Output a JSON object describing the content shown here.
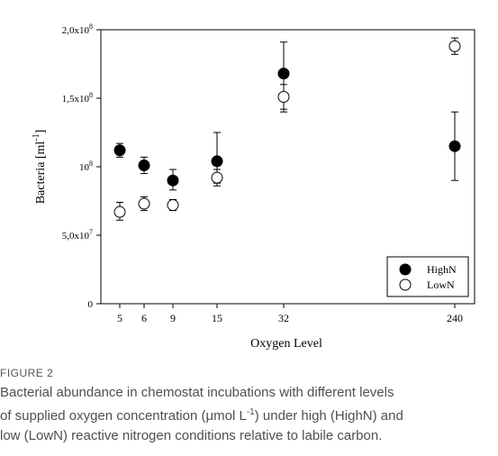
{
  "chart_data": {
    "type": "scatter",
    "x_categories": [
      "5",
      "6",
      "9",
      "15",
      "32",
      "240"
    ],
    "xlabel": "Oxygen Level",
    "ylabel": "Bacteria [ml",
    "ylabel_sup": "-1",
    "ylabel_suffix": "]",
    "ylim": [
      0,
      200000000
    ],
    "y_ticks": [
      {
        "value": 0,
        "label": "0"
      },
      {
        "value": 50000000,
        "label": "5,0x10",
        "sup": "7"
      },
      {
        "value": 100000000,
        "label": "10",
        "sup": "8"
      },
      {
        "value": 150000000,
        "label": "1,5x10",
        "sup": "8"
      },
      {
        "value": 200000000,
        "label": "2,0x10",
        "sup": "8"
      }
    ],
    "grid": false,
    "legend_position": "bottom-right",
    "series": [
      {
        "name": "HighN",
        "marker": "filled-circle",
        "x": [
          "5",
          "6",
          "9",
          "15",
          "32",
          "240"
        ],
        "y": [
          112000000,
          101000000,
          90000000,
          104000000,
          168000000,
          115000000
        ],
        "err_low": [
          107000000,
          95000000,
          83000000,
          88000000,
          142000000,
          90000000
        ],
        "err_high": [
          117000000,
          107000000,
          98000000,
          125000000,
          191000000,
          140000000
        ]
      },
      {
        "name": "LowN",
        "marker": "open-circle",
        "x": [
          "5",
          "6",
          "9",
          "15",
          "32",
          "240"
        ],
        "y": [
          67000000,
          73000000,
          72000000,
          92000000,
          151000000,
          188000000
        ],
        "err_low": [
          61000000,
          68000000,
          68000000,
          86000000,
          140000000,
          182000000
        ],
        "err_high": [
          74000000,
          78000000,
          76000000,
          98000000,
          160000000,
          194000000
        ]
      }
    ]
  },
  "figure": {
    "label": "FIGURE 2",
    "caption_line1": "Bacterial abundance in chemostat incubations with different levels",
    "caption_line2_pre": "of supplied oxygen concentration (μmol L",
    "caption_line2_sup": "-1",
    "caption_line2_post": ") under high (HighN) and",
    "caption_line3": "low (LowN) reactive nitrogen conditions relative to labile carbon."
  },
  "colors": {
    "axis": "#000000",
    "marker_fill": "#000000",
    "marker_open_fill": "#ffffff",
    "caption_text": "#4f4f4f",
    "label_text": "#555555"
  }
}
